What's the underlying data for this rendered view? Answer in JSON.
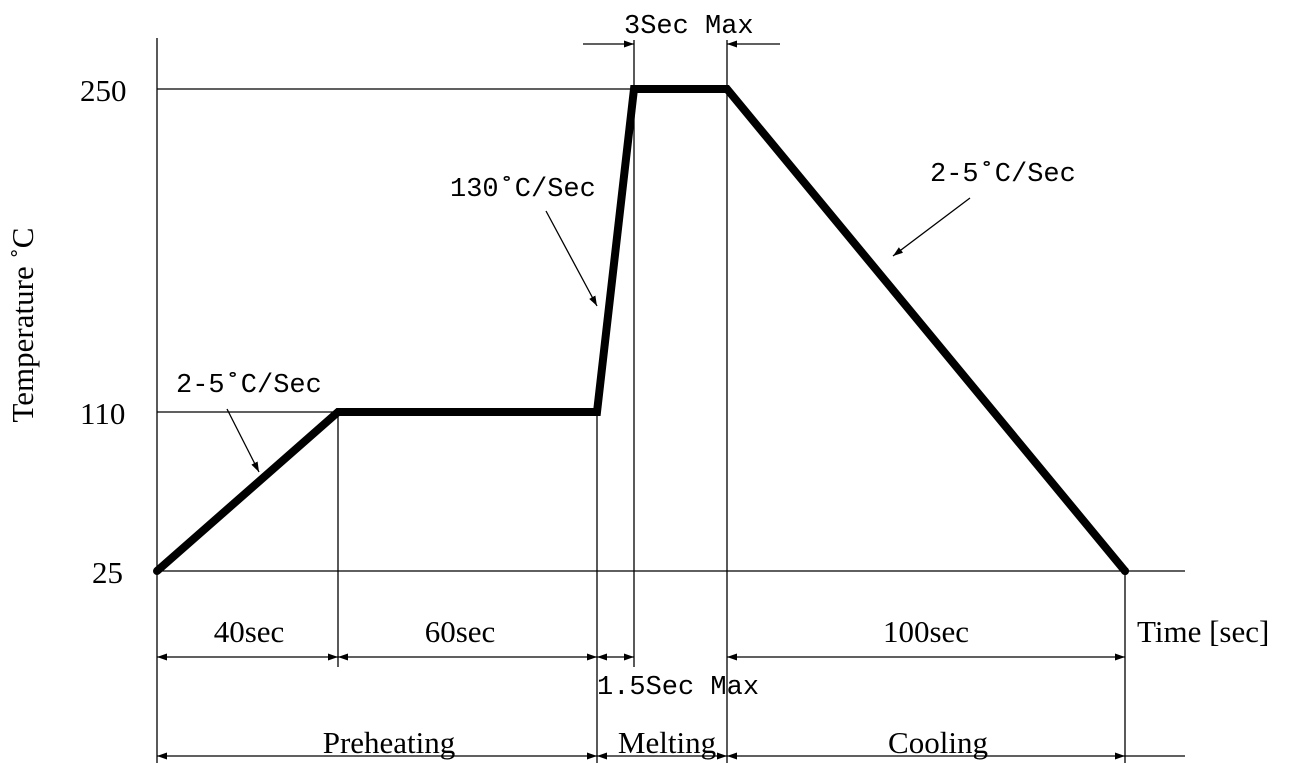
{
  "diagram": {
    "y_axis_label": "Temperature ˚C",
    "x_axis_label": "Time [sec]",
    "y_ticks": {
      "t250": "250",
      "t110": "110",
      "t25": "25"
    },
    "rates": {
      "ramp_up": "2-5˚C/Sec",
      "spike": "130˚C/Sec",
      "cool_down": "2-5˚C/Sec"
    },
    "durations": {
      "ramp": "40sec",
      "soak": "60sec",
      "rise": "1.5Sec Max",
      "peak": "3Sec Max",
      "cool": "100sec"
    },
    "phases": {
      "preheating": "Preheating",
      "melting": "Melting",
      "cooling": "Cooling"
    }
  }
}
